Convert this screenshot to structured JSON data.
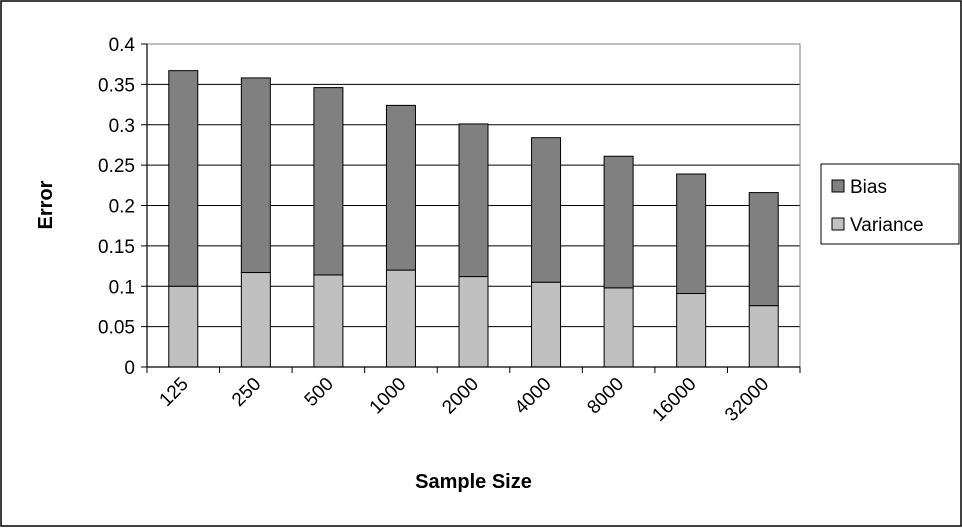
{
  "chart_data": {
    "type": "bar",
    "stacked": true,
    "title": "",
    "xlabel": "Sample Size",
    "ylabel": "Error",
    "categories": [
      "125",
      "250",
      "500",
      "1000",
      "2000",
      "4000",
      "8000",
      "16000",
      "32000"
    ],
    "series": [
      {
        "name": "Variance",
        "color": "#c0c0c0",
        "values": [
          0.1,
          0.117,
          0.114,
          0.12,
          0.112,
          0.105,
          0.098,
          0.091,
          0.076
        ]
      },
      {
        "name": "Bias",
        "color": "#808080",
        "values": [
          0.267,
          0.241,
          0.232,
          0.204,
          0.189,
          0.179,
          0.163,
          0.148,
          0.14
        ]
      }
    ],
    "ylim": [
      0,
      0.4
    ],
    "yticks": [
      "0",
      "0.05",
      "0.1",
      "0.15",
      "0.2",
      "0.25",
      "0.3",
      "0.35",
      "0.4"
    ],
    "grid": true,
    "legend": {
      "position": "right",
      "entries": [
        "Bias",
        "Variance"
      ]
    }
  }
}
